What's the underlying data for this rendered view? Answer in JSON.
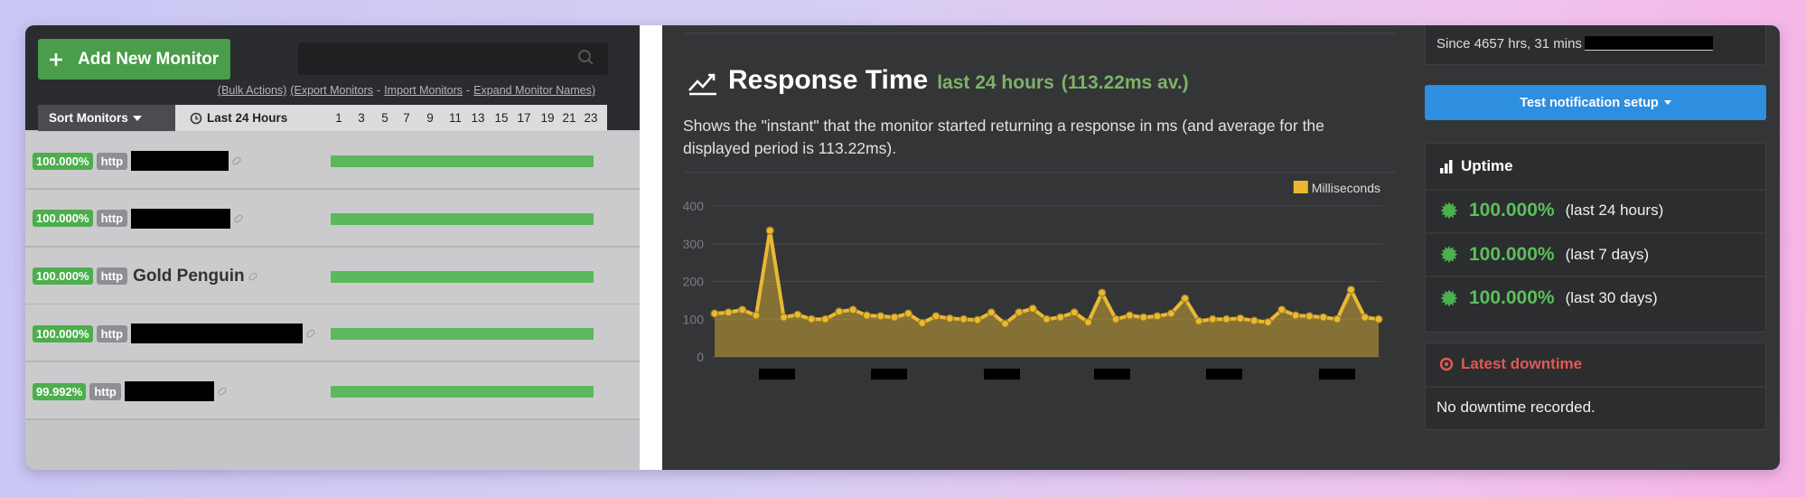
{
  "toolbar": {
    "add_button": "Add New Monitor",
    "links": [
      "(Bulk Actions)",
      "(Export Monitors",
      "-",
      "Import Monitors",
      "-",
      "Expand Monitor Names)"
    ]
  },
  "tabs": {
    "sort": "Sort Monitors",
    "period": "Last 24 Hours",
    "hours": [
      "1",
      "3",
      "5",
      "7",
      "9",
      "11",
      "13",
      "15",
      "17",
      "19",
      "21",
      "23"
    ]
  },
  "monitors": [
    {
      "uptime": "100.000%",
      "type": "http",
      "name": null
    },
    {
      "uptime": "100.000%",
      "type": "http",
      "name": null
    },
    {
      "uptime": "100.000%",
      "type": "http",
      "name": "Gold Penguin"
    },
    {
      "uptime": "100.000%",
      "type": "http",
      "name": null
    },
    {
      "uptime": "99.992%",
      "type": "http",
      "name": null
    }
  ],
  "panel": {
    "title": "Response Time",
    "period": "last 24 hours",
    "average": "(113.22ms av.)",
    "description": "Shows the \"instant\" that the monitor started returning a response in ms (and average for the displayed period is 113.22ms)."
  },
  "chart_data": {
    "type": "line",
    "ylim": [
      0,
      400
    ],
    "yticks": [
      0,
      100,
      200,
      300,
      400
    ],
    "grid": true,
    "legend": "top-right",
    "series": [
      {
        "name": "Milliseconds",
        "color": "#e9b934",
        "values": [
          115,
          118,
          125,
          110,
          335,
          105,
          112,
          100,
          100,
          120,
          125,
          110,
          108,
          105,
          115,
          90,
          108,
          102,
          100,
          98,
          118,
          88,
          118,
          128,
          100,
          105,
          118,
          92,
          170,
          100,
          110,
          105,
          108,
          115,
          155,
          95,
          100,
          100,
          102,
          96,
          92,
          125,
          110,
          108,
          105,
          100,
          178,
          105,
          100
        ]
      }
    ]
  },
  "sidebar": {
    "since": "Since 4657 hrs, 31 mins",
    "notify_button": "Test notification setup",
    "uptime": {
      "title": "Uptime",
      "rows": [
        {
          "value": "100.000%",
          "period": "(last 24 hours)"
        },
        {
          "value": "100.000%",
          "period": "(last 7 days)"
        },
        {
          "value": "100.000%",
          "period": "(last 30 days)"
        }
      ]
    },
    "downtime": {
      "title": "Latest downtime",
      "text": "No downtime recorded."
    }
  }
}
